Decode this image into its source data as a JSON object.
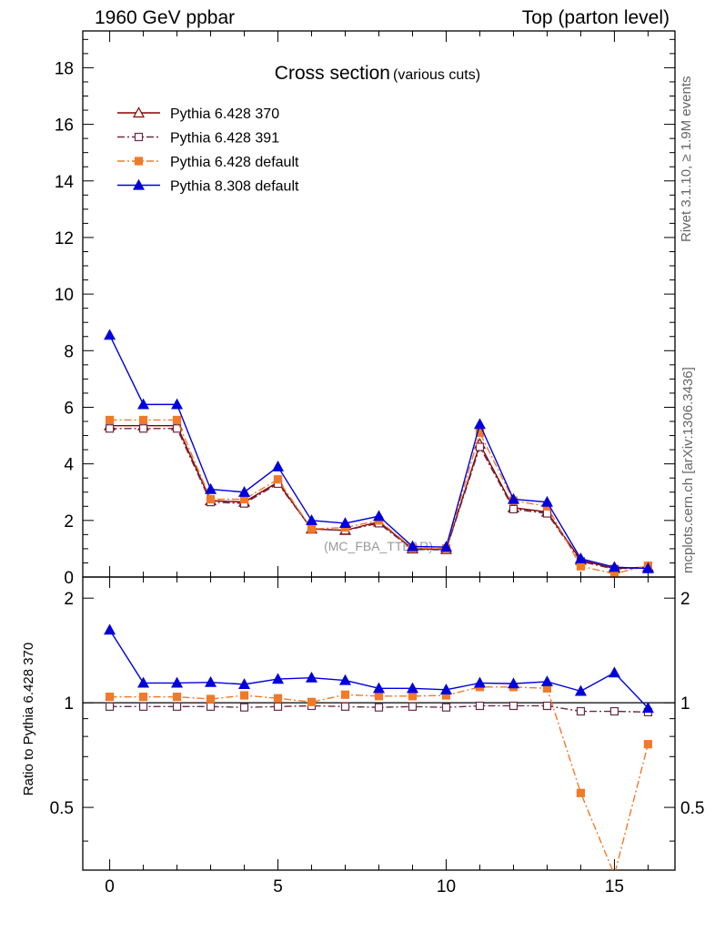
{
  "header": {
    "left": "1960 GeV ppbar",
    "right": "Top (parton level)"
  },
  "side_text": {
    "rivet": "Rivet 3.1.10, ≥ 1.9M events",
    "mcplots": "mcplots.cern.ch [arXiv:1306.3436]"
  },
  "chart_data": [
    {
      "type": "line",
      "title": "Cross section",
      "subtitle": "(various cuts)",
      "watermark": "(MC_FBA_TTBAR)",
      "xlabel": "",
      "ylabel": "",
      "xlim": [
        -0.8,
        16.8
      ],
      "ylim": [
        0,
        19.3
      ],
      "yticks": [
        0,
        2,
        4,
        6,
        8,
        10,
        12,
        14,
        16,
        18
      ],
      "legend_position": "top-left",
      "x": [
        0,
        1,
        2,
        3,
        4,
        5,
        6,
        7,
        8,
        9,
        10,
        11,
        12,
        13,
        14,
        15,
        16
      ],
      "series": [
        {
          "name": "Pythia 6.428 370",
          "color": "#8b0000",
          "marker": "open-triangle",
          "dash": "solid",
          "values": [
            5.35,
            5.35,
            5.35,
            2.7,
            2.65,
            3.35,
            1.7,
            1.65,
            1.95,
            1.0,
            0.98,
            4.7,
            2.45,
            2.3,
            0.6,
            0.3,
            0.35
          ]
        },
        {
          "name": "Pythia 6.428 391",
          "color": "#6b2a46",
          "marker": "open-square",
          "dash": "dashdot",
          "values": [
            5.25,
            5.25,
            5.25,
            2.65,
            2.6,
            3.3,
            1.7,
            1.65,
            1.9,
            0.98,
            0.96,
            4.6,
            2.4,
            2.25,
            0.55,
            0.28,
            0.33
          ]
        },
        {
          "name": "Pythia 6.428 default",
          "color": "#f07a2a",
          "marker": "filled-square",
          "dash": "dashdot",
          "values": [
            5.55,
            5.55,
            5.55,
            2.75,
            2.75,
            3.45,
            1.7,
            1.75,
            2.0,
            1.02,
            1.01,
            5.1,
            2.7,
            2.5,
            0.38,
            0.12,
            0.4
          ]
        },
        {
          "name": "Pythia 8.308 default",
          "color": "#0000dd",
          "marker": "filled-triangle",
          "dash": "solid",
          "values": [
            8.55,
            6.1,
            6.1,
            3.1,
            3.0,
            3.9,
            2.0,
            1.9,
            2.15,
            1.08,
            1.06,
            5.4,
            2.75,
            2.65,
            0.65,
            0.35,
            0.3
          ]
        }
      ]
    },
    {
      "type": "line",
      "title": "",
      "xlabel": "",
      "ylabel": "Ratio to Pythia 6.428 370",
      "xlim": [
        -0.8,
        16.8
      ],
      "ylim": [
        0.33,
        2.3
      ],
      "yscale": "log",
      "yticks": [
        0.5,
        1,
        2
      ],
      "xticks": [
        0,
        5,
        10,
        15
      ],
      "reference_line": 1,
      "x": [
        0,
        1,
        2,
        3,
        4,
        5,
        6,
        7,
        8,
        9,
        10,
        11,
        12,
        13,
        14,
        15,
        16
      ],
      "series": [
        {
          "name": "Pythia 6.428 391",
          "color": "#6b2a46",
          "marker": "open-square",
          "dash": "dashdot",
          "values": [
            0.975,
            0.975,
            0.975,
            0.975,
            0.97,
            0.975,
            0.98,
            0.975,
            0.97,
            0.975,
            0.97,
            0.98,
            0.98,
            0.98,
            0.945,
            0.945,
            0.94
          ]
        },
        {
          "name": "Pythia 6.428 default",
          "color": "#f07a2a",
          "marker": "filled-square",
          "dash": "dashdot",
          "values": [
            1.04,
            1.04,
            1.04,
            1.025,
            1.05,
            1.03,
            1.005,
            1.055,
            1.045,
            1.045,
            1.05,
            1.11,
            1.11,
            1.1,
            0.55,
            0.32,
            0.76
          ]
        },
        {
          "name": "Pythia 8.308 default",
          "color": "#0000dd",
          "marker": "filled-triangle",
          "dash": "solid",
          "values": [
            1.62,
            1.14,
            1.14,
            1.145,
            1.13,
            1.17,
            1.18,
            1.16,
            1.1,
            1.1,
            1.09,
            1.14,
            1.135,
            1.15,
            1.08,
            1.22,
            0.965
          ]
        }
      ]
    }
  ]
}
